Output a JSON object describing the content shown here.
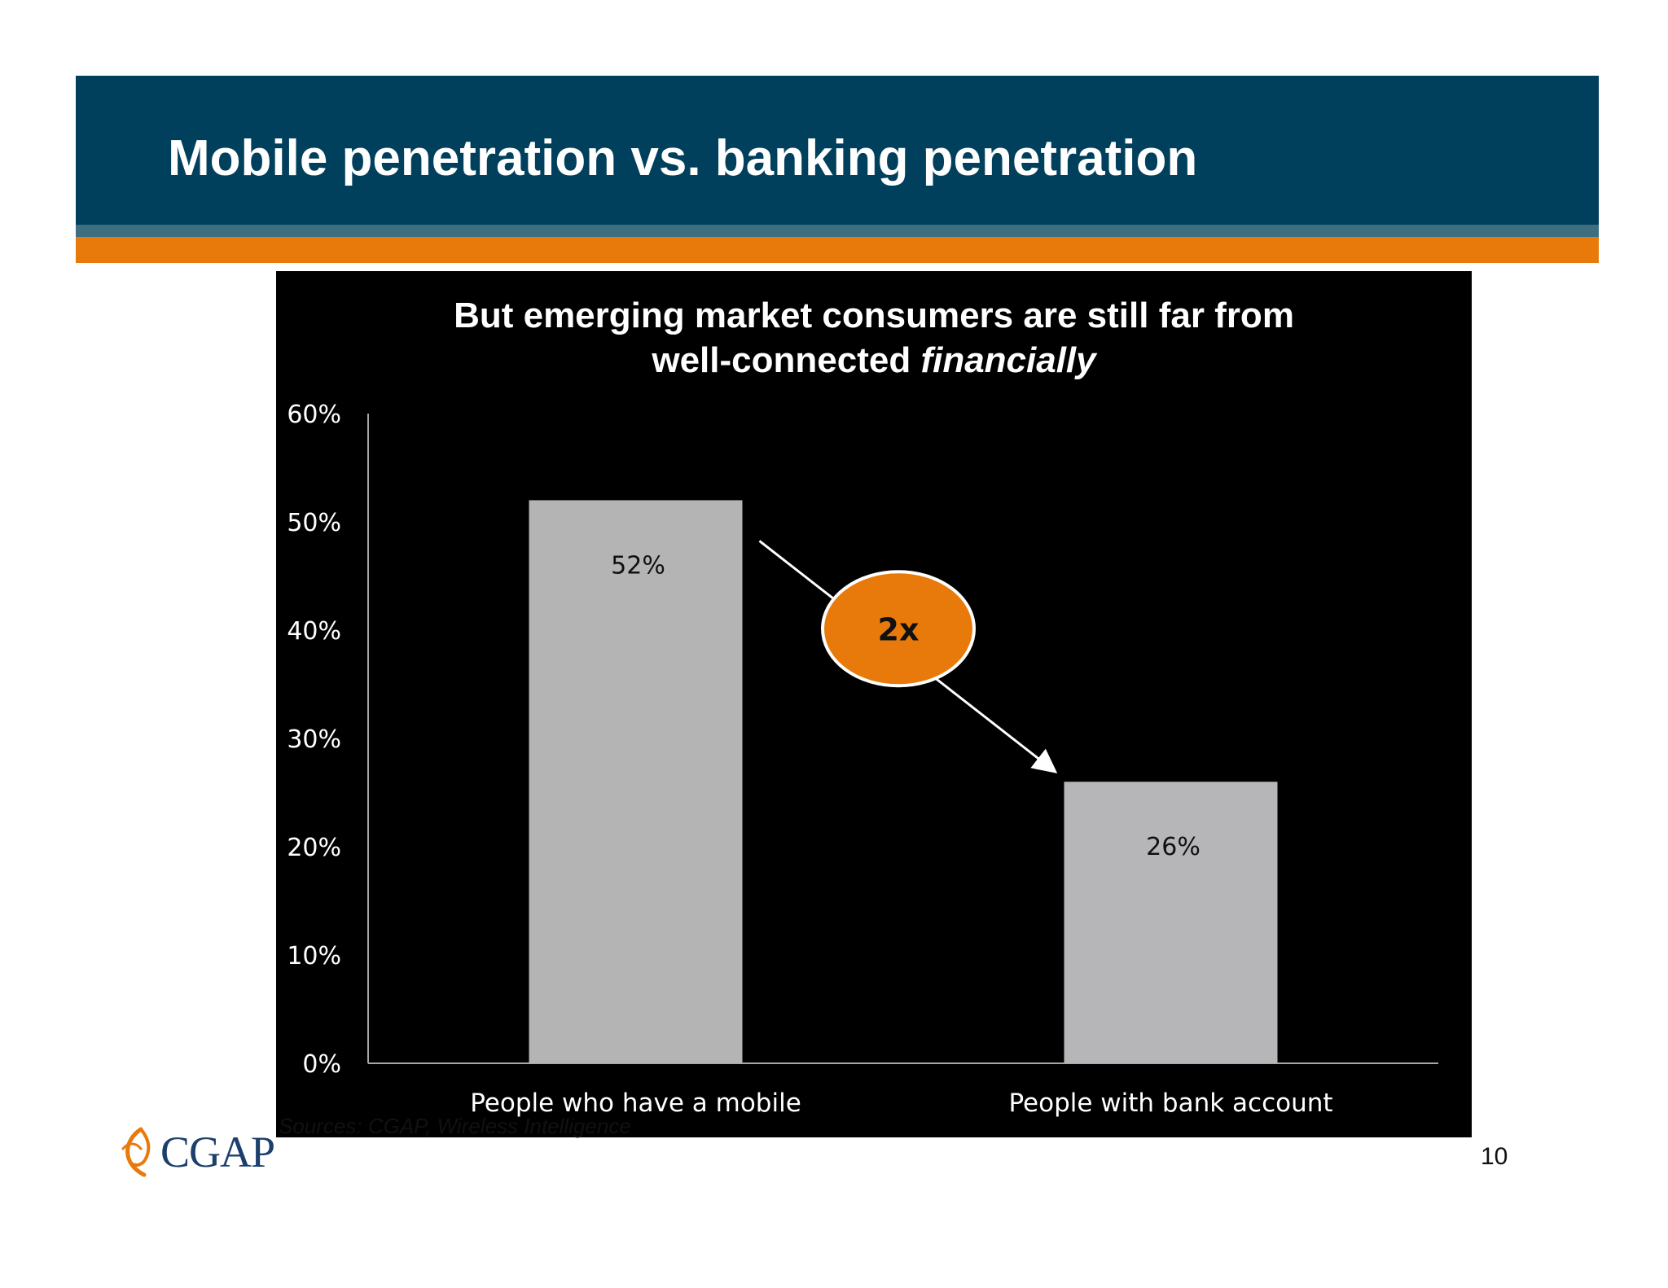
{
  "slide": {
    "title": "Mobile penetration vs. banking penetration",
    "page_number": "10",
    "sources": "Sources: CGAP, Wireless Intelligence",
    "logo_text": "CGAP"
  },
  "chart_data": {
    "type": "bar",
    "title_line1": "But emerging market consumers  are still far from",
    "title_line2_prefix": "well-connected ",
    "title_line2_emphasis": "financially",
    "categories": [
      "People who have a mobile",
      "People with bank account"
    ],
    "values": [
      0.52,
      0.26
    ],
    "data_labels": [
      "52%",
      "26%"
    ],
    "ylim": [
      0,
      0.6
    ],
    "yticks": [
      "0%",
      "10%",
      "20%",
      "30%",
      "40%",
      "50%",
      "60%"
    ],
    "annotation": "2x",
    "colors": {
      "background": "#000000",
      "bar": "#b4b4b4",
      "bar2": "#b6b5b8",
      "axis": "#a6a6a6",
      "text": "#ffffff",
      "annotation_fill": "#e87a0c"
    },
    "grid": false
  },
  "colors": {
    "header": "#00405c",
    "stripe": "#3e6f80",
    "accent": "#e87a0c"
  }
}
